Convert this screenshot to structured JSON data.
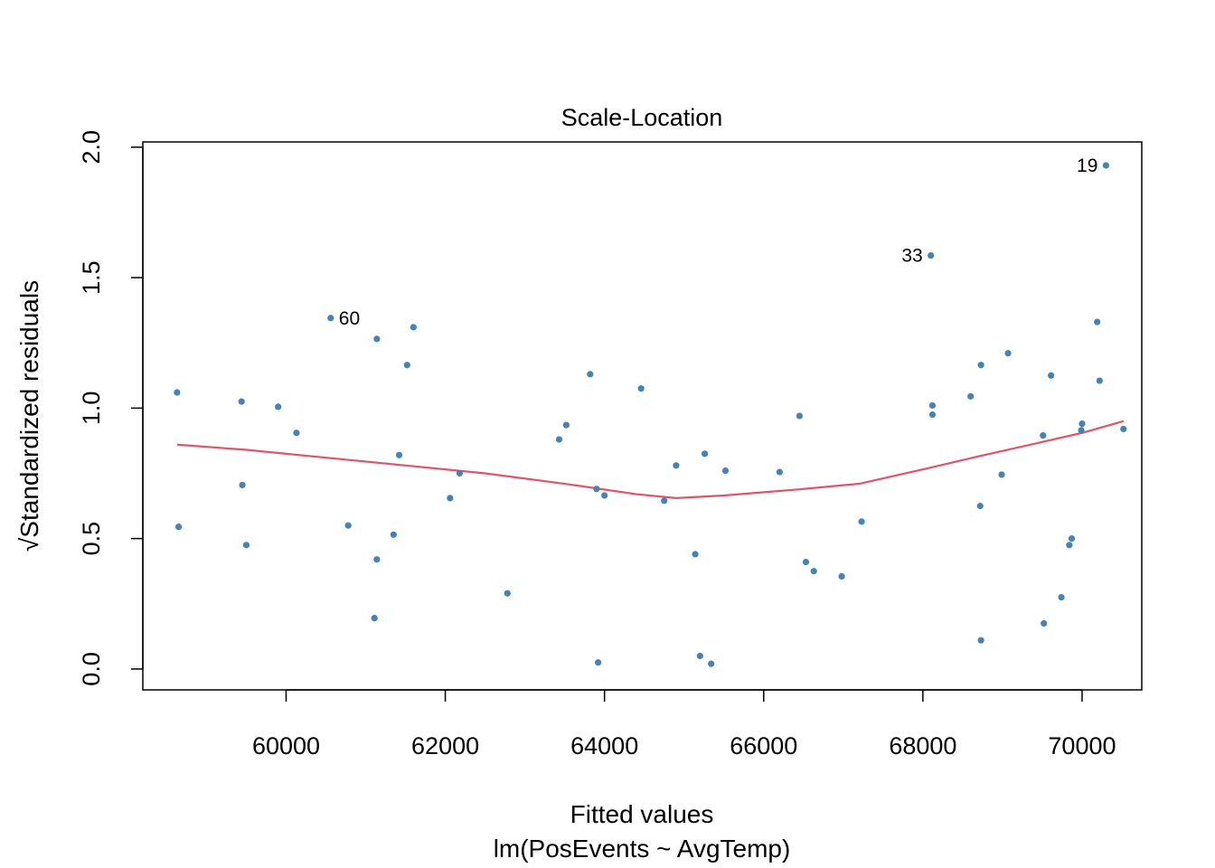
{
  "chart_data": {
    "type": "scatter",
    "title": "Scale-Location",
    "xlabel": "Fitted values",
    "xlabel_sub": "lm(PosEvents ~ AvgTemp)",
    "ylabel": "Standardized residuals",
    "ylabel_prefix": "√",
    "xlim": [
      58200,
      70750
    ],
    "ylim": [
      -0.08,
      2.02
    ],
    "x_ticks": [
      60000,
      62000,
      64000,
      66000,
      68000,
      70000
    ],
    "x_tick_labels": [
      "60000",
      "62000",
      "64000",
      "66000",
      "68000",
      "70000"
    ],
    "y_ticks": [
      0.0,
      0.5,
      1.0,
      1.5,
      2.0
    ],
    "y_tick_labels": [
      "0.0",
      "0.5",
      "1.0",
      "1.5",
      "2.0"
    ],
    "grid": false,
    "colors": {
      "points": "#4682b4",
      "smoother": "#df536b",
      "axis": "#000000"
    },
    "points": [
      {
        "x": 58630,
        "y": 1.06
      },
      {
        "x": 58650,
        "y": 0.545
      },
      {
        "x": 59440,
        "y": 1.025
      },
      {
        "x": 59450,
        "y": 0.705
      },
      {
        "x": 59500,
        "y": 0.475
      },
      {
        "x": 59900,
        "y": 1.005
      },
      {
        "x": 60130,
        "y": 0.905
      },
      {
        "x": 60560,
        "y": 1.345,
        "label": "60"
      },
      {
        "x": 60780,
        "y": 0.55
      },
      {
        "x": 61110,
        "y": 0.195
      },
      {
        "x": 61140,
        "y": 0.42
      },
      {
        "x": 61140,
        "y": 1.265
      },
      {
        "x": 61350,
        "y": 0.515
      },
      {
        "x": 61420,
        "y": 0.82
      },
      {
        "x": 61520,
        "y": 1.165
      },
      {
        "x": 61600,
        "y": 1.31
      },
      {
        "x": 62060,
        "y": 0.655
      },
      {
        "x": 62180,
        "y": 0.75
      },
      {
        "x": 62780,
        "y": 0.29
      },
      {
        "x": 63430,
        "y": 0.88
      },
      {
        "x": 63520,
        "y": 0.935
      },
      {
        "x": 63820,
        "y": 1.13
      },
      {
        "x": 63900,
        "y": 0.69
      },
      {
        "x": 63920,
        "y": 0.025
      },
      {
        "x": 64000,
        "y": 0.665
      },
      {
        "x": 64460,
        "y": 1.075
      },
      {
        "x": 64750,
        "y": 0.645
      },
      {
        "x": 64900,
        "y": 0.78
      },
      {
        "x": 65140,
        "y": 0.44
      },
      {
        "x": 65200,
        "y": 0.05
      },
      {
        "x": 65260,
        "y": 0.825
      },
      {
        "x": 65340,
        "y": 0.02
      },
      {
        "x": 65520,
        "y": 0.76
      },
      {
        "x": 66200,
        "y": 0.755
      },
      {
        "x": 66450,
        "y": 0.97
      },
      {
        "x": 66530,
        "y": 0.41
      },
      {
        "x": 66630,
        "y": 0.375
      },
      {
        "x": 66980,
        "y": 0.355
      },
      {
        "x": 67230,
        "y": 0.565
      },
      {
        "x": 68100,
        "y": 1.585,
        "label": "33"
      },
      {
        "x": 68120,
        "y": 1.01
      },
      {
        "x": 68120,
        "y": 0.975
      },
      {
        "x": 68600,
        "y": 1.045
      },
      {
        "x": 68720,
        "y": 0.625
      },
      {
        "x": 68730,
        "y": 1.165
      },
      {
        "x": 68730,
        "y": 0.11
      },
      {
        "x": 68990,
        "y": 0.745
      },
      {
        "x": 69070,
        "y": 1.21
      },
      {
        "x": 69510,
        "y": 0.895
      },
      {
        "x": 69520,
        "y": 0.175
      },
      {
        "x": 69610,
        "y": 1.125
      },
      {
        "x": 69740,
        "y": 0.275
      },
      {
        "x": 69840,
        "y": 0.475
      },
      {
        "x": 69870,
        "y": 0.5
      },
      {
        "x": 69990,
        "y": 0.915
      },
      {
        "x": 70000,
        "y": 0.94
      },
      {
        "x": 70190,
        "y": 1.33
      },
      {
        "x": 70220,
        "y": 1.105
      },
      {
        "x": 70300,
        "y": 1.93,
        "label": "19"
      },
      {
        "x": 70520,
        "y": 0.92
      }
    ],
    "smoother": {
      "x": [
        58630,
        59500,
        60500,
        61500,
        62500,
        63500,
        64400,
        64900,
        65500,
        66500,
        67200,
        68000,
        68700,
        69500,
        70000,
        70520
      ],
      "y": [
        0.86,
        0.84,
        0.81,
        0.78,
        0.75,
        0.71,
        0.67,
        0.655,
        0.665,
        0.69,
        0.71,
        0.765,
        0.815,
        0.87,
        0.905,
        0.95
      ]
    }
  }
}
